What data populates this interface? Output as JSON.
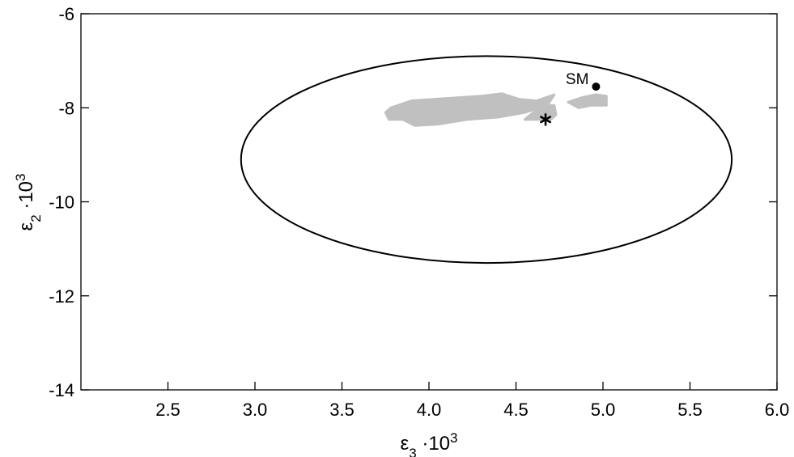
{
  "chart_data": {
    "type": "scatter",
    "title": "",
    "xlabel": {
      "base": "ε",
      "sub": "3",
      "mid": " ·10",
      "sup": "3"
    },
    "ylabel": {
      "base": "ε",
      "sub": "2",
      "mid": " ·10",
      "sup": "3"
    },
    "xlim": [
      2.0,
      6.0
    ],
    "ylim": [
      -14,
      -6
    ],
    "xticks": [
      2.5,
      3.0,
      3.5,
      4.0,
      4.5,
      5.0,
      5.5,
      6.0
    ],
    "xtick_labels": [
      "2.5",
      "3.0",
      "3.5",
      "4.0",
      "4.5",
      "5.0",
      "5.5",
      "6.0"
    ],
    "yticks": [
      -14,
      -12,
      -10,
      -8,
      -6
    ],
    "ytick_labels": [
      "-14",
      "-12",
      "-10",
      "-8",
      "-6"
    ],
    "grid": false,
    "ellipse": {
      "cx": 4.33,
      "cy": -9.1,
      "rx": 1.41,
      "ry": 2.2,
      "stroke": "#000000"
    },
    "regions": [
      {
        "fill": "#c0c0c0",
        "points": [
          [
            3.78,
            -8.0
          ],
          [
            3.9,
            -7.85
          ],
          [
            4.1,
            -7.8
          ],
          [
            4.3,
            -7.75
          ],
          [
            4.42,
            -7.7
          ],
          [
            4.52,
            -7.82
          ],
          [
            4.62,
            -7.85
          ],
          [
            4.72,
            -7.72
          ],
          [
            4.68,
            -7.95
          ],
          [
            4.55,
            -8.1
          ],
          [
            4.4,
            -8.2
          ],
          [
            4.22,
            -8.25
          ],
          [
            4.05,
            -8.35
          ],
          [
            3.92,
            -8.38
          ],
          [
            3.85,
            -8.25
          ],
          [
            3.77,
            -8.25
          ],
          [
            3.75,
            -8.1
          ]
        ]
      },
      {
        "fill": "#c0c0c0",
        "points": [
          [
            4.55,
            -8.25
          ],
          [
            4.6,
            -8.1
          ],
          [
            4.67,
            -7.95
          ],
          [
            4.72,
            -7.95
          ],
          [
            4.73,
            -8.15
          ],
          [
            4.7,
            -8.25
          ]
        ]
      },
      {
        "fill": "#c0c0c0",
        "points": [
          [
            4.8,
            -7.88
          ],
          [
            4.88,
            -7.78
          ],
          [
            4.96,
            -7.72
          ],
          [
            5.02,
            -7.75
          ],
          [
            5.02,
            -7.95
          ],
          [
            4.93,
            -7.95
          ],
          [
            4.86,
            -8.0
          ]
        ]
      }
    ],
    "points": [
      {
        "label": "SM",
        "x": 4.96,
        "y": -7.55,
        "marker": "circle"
      },
      {
        "label": "",
        "x": 4.67,
        "y": -8.25,
        "marker": "star"
      }
    ]
  }
}
